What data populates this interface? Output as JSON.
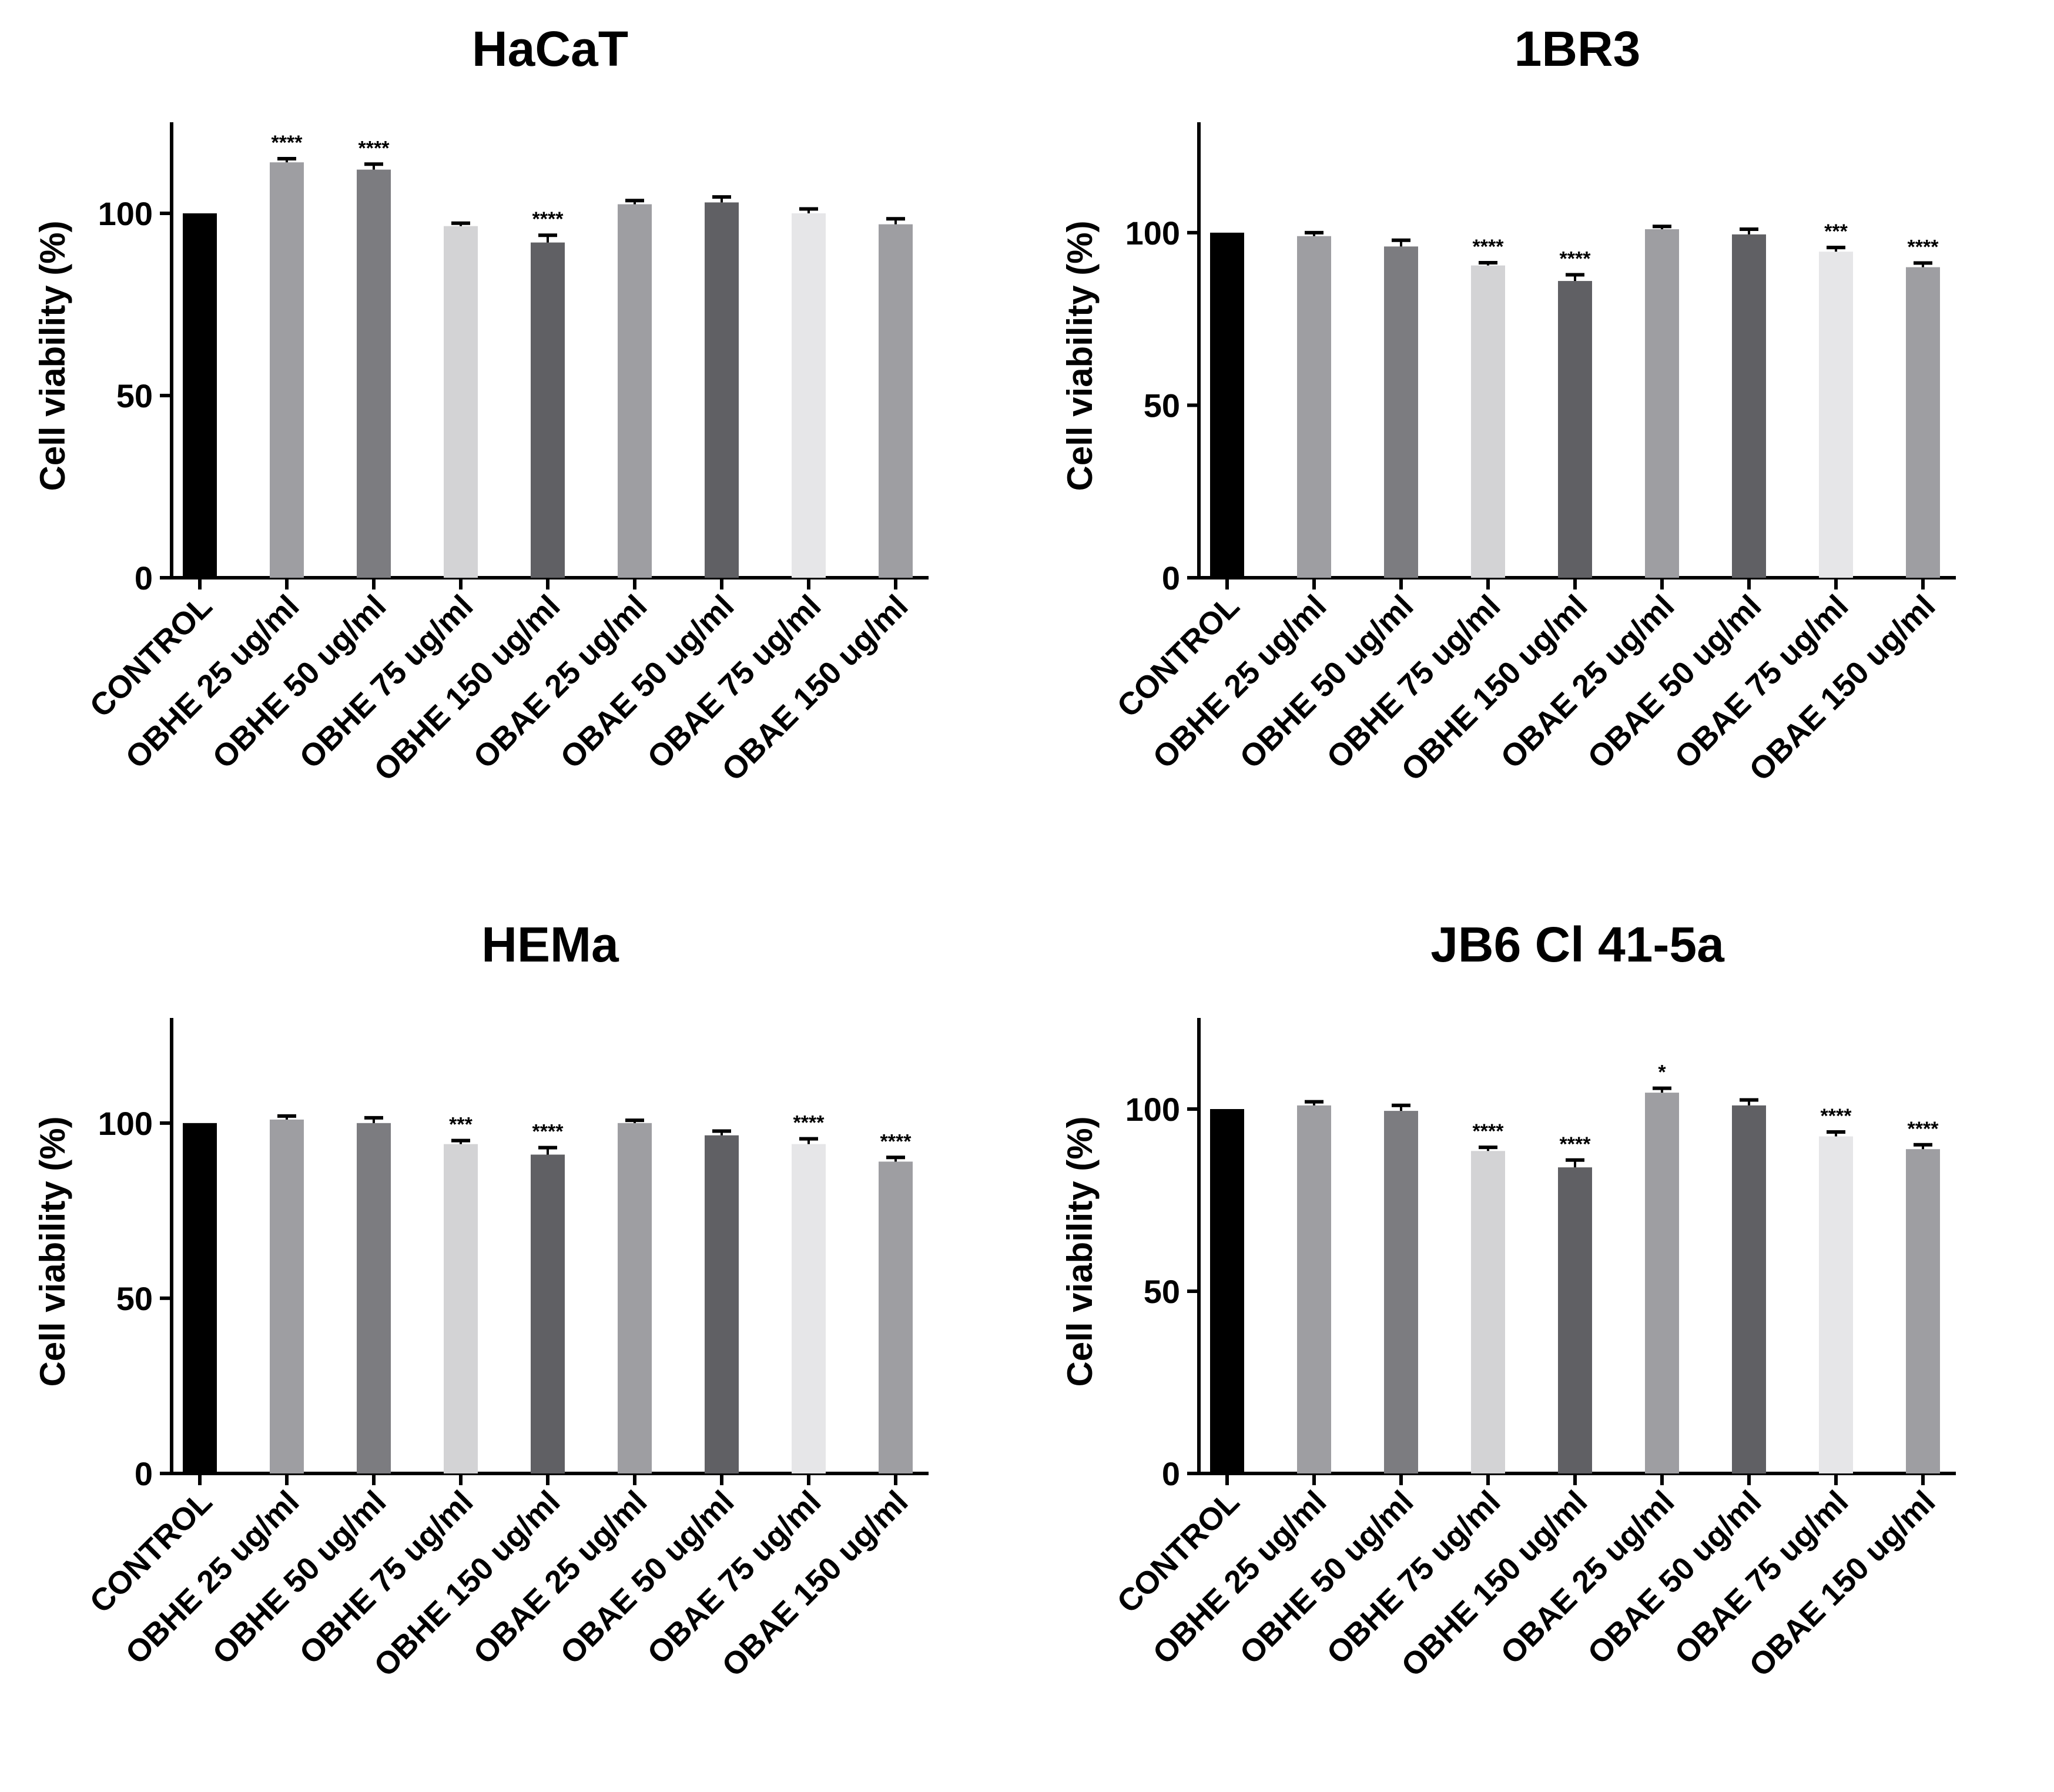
{
  "chart_data": [
    {
      "type": "bar",
      "title": "HaCaT",
      "xlabel": "",
      "ylabel": "Cell viability (%)",
      "ylim": [
        0,
        125
      ],
      "yticks": [
        0,
        50,
        100
      ],
      "categories": [
        "CONTROL",
        "OBHE 25 ug/ml",
        "OBHE 50 ug/ml",
        "OBHE 75 ug/ml",
        "OBHE 150 ug/ml",
        "OBAE 25 ug/ml",
        "OBAE 50 ug/ml",
        "OBAE 75 ug/ml",
        "OBAE 150 ug/ml"
      ],
      "values": [
        100,
        114,
        112,
        96.5,
        92,
        102.5,
        103,
        100,
        97
      ],
      "errors": [
        0,
        1,
        1.5,
        0.8,
        2,
        1,
        1.5,
        1.2,
        1.5
      ],
      "significance": [
        "",
        "****",
        "****",
        "",
        "****",
        "",
        "",
        "",
        ""
      ],
      "colors": [
        "#000000",
        "#9e9ea2",
        "#7c7c80",
        "#d3d3d5",
        "#606064",
        "#9e9ea2",
        "#606064",
        "#e6e6e8",
        "#9e9ea2"
      ],
      "grid": false
    },
    {
      "type": "bar",
      "title": "1BR3",
      "xlabel": "",
      "ylabel": "Cell viability (%)",
      "ylim": [
        0,
        132
      ],
      "yticks": [
        0,
        50,
        100
      ],
      "categories": [
        "CONTROL",
        "OBHE 25 ug/ml",
        "OBHE 50 ug/ml",
        "OBHE 75 ug/ml",
        "OBHE 150 ug/ml",
        "OBAE 25 ug/ml",
        "OBAE 50 ug/ml",
        "OBAE 75 ug/ml",
        "OBAE 150 ug/ml"
      ],
      "values": [
        100,
        99,
        96,
        90.5,
        86,
        101,
        99.5,
        94.5,
        90
      ],
      "errors": [
        0,
        1,
        1.8,
        0.8,
        1.8,
        0.8,
        1.5,
        1.2,
        1.2
      ],
      "significance": [
        "",
        "",
        "",
        "****",
        "****",
        "",
        "",
        "***",
        "****"
      ],
      "colors": [
        "#000000",
        "#9e9ea2",
        "#7c7c80",
        "#d3d3d5",
        "#606064",
        "#9e9ea2",
        "#606064",
        "#e6e6e8",
        "#9e9ea2"
      ],
      "grid": false
    },
    {
      "type": "bar",
      "title": "HEMa",
      "xlabel": "",
      "ylabel": "Cell viability (%)",
      "ylim": [
        0,
        130
      ],
      "yticks": [
        0,
        50,
        100
      ],
      "categories": [
        "CONTROL",
        "OBHE 25 ug/ml",
        "OBHE 50 ug/ml",
        "OBHE 75 ug/ml",
        "OBHE 150 ug/ml",
        "OBAE 25 ug/ml",
        "OBAE 50 ug/ml",
        "OBAE 75 ug/ml",
        "OBAE 150 ug/ml"
      ],
      "values": [
        100,
        101,
        100,
        94,
        91,
        100,
        96.5,
        94,
        89
      ],
      "errors": [
        0,
        1,
        1.5,
        1,
        2,
        0.8,
        1.2,
        1.5,
        1.2
      ],
      "significance": [
        "",
        "",
        "",
        "***",
        "****",
        "",
        "",
        "****",
        "****"
      ],
      "colors": [
        "#000000",
        "#9e9ea2",
        "#7c7c80",
        "#d3d3d5",
        "#606064",
        "#9e9ea2",
        "#606064",
        "#e6e6e8",
        "#9e9ea2"
      ],
      "grid": false
    },
    {
      "type": "bar",
      "title": "JB6 Cl 41-5a",
      "xlabel": "",
      "ylabel": "Cell viability (%)",
      "ylim": [
        0,
        125
      ],
      "yticks": [
        0,
        50,
        100
      ],
      "categories": [
        "CONTROL",
        "OBHE 25 ug/ml",
        "OBHE 50 ug/ml",
        "OBHE 75 ug/ml",
        "OBHE 150 ug/ml",
        "OBAE 25 ug/ml",
        "OBAE 50 ug/ml",
        "OBAE 75 ug/ml",
        "OBAE 150 ug/ml"
      ],
      "values": [
        100,
        101,
        99.5,
        88.5,
        84,
        104.5,
        101,
        92.5,
        89
      ],
      "errors": [
        0,
        1,
        1.5,
        1,
        2,
        1.2,
        1.5,
        1.2,
        1.2
      ],
      "significance": [
        "",
        "",
        "",
        "****",
        "****",
        "*",
        "",
        "****",
        "****"
      ],
      "colors": [
        "#000000",
        "#9e9ea2",
        "#7c7c80",
        "#d3d3d5",
        "#606064",
        "#9e9ea2",
        "#606064",
        "#e6e6e8",
        "#9e9ea2"
      ],
      "grid": false
    }
  ]
}
